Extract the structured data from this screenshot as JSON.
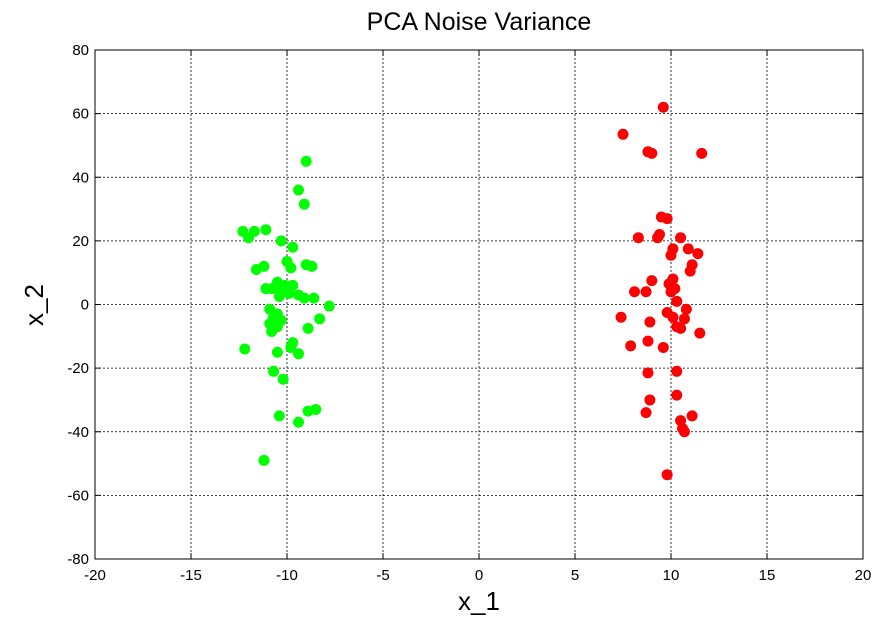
{
  "chart_data": {
    "type": "scatter",
    "title": "PCA Noise Variance",
    "xlabel": "x_1",
    "ylabel": "x_2",
    "xlim": [
      -20,
      20
    ],
    "ylim": [
      -80,
      80
    ],
    "xticks": [
      -20,
      -15,
      -10,
      -5,
      0,
      5,
      10,
      15,
      20
    ],
    "yticks": [
      -80,
      -60,
      -40,
      -20,
      0,
      20,
      40,
      60,
      80
    ],
    "grid": true,
    "series": [
      {
        "color": "#00ff00",
        "points": [
          [
            -9.0,
            45
          ],
          [
            -9.4,
            36
          ],
          [
            -9.1,
            31.5
          ],
          [
            -12.3,
            23
          ],
          [
            -11.7,
            23
          ],
          [
            -11.1,
            23.5
          ],
          [
            -12.0,
            21
          ],
          [
            -10.3,
            20
          ],
          [
            -9.7,
            18
          ],
          [
            -10.0,
            13.5
          ],
          [
            -9.0,
            12.5
          ],
          [
            -8.7,
            12
          ],
          [
            -11.2,
            12
          ],
          [
            -11.6,
            11
          ],
          [
            -9.8,
            11.5
          ],
          [
            -10.5,
            7
          ],
          [
            -10.1,
            6
          ],
          [
            -9.7,
            6
          ],
          [
            -11.1,
            5
          ],
          [
            -10.8,
            5
          ],
          [
            -10.3,
            4
          ],
          [
            -9.9,
            3.5
          ],
          [
            -10.4,
            2.5
          ],
          [
            -9.4,
            3
          ],
          [
            -9.1,
            2
          ],
          [
            -8.6,
            2
          ],
          [
            -7.8,
            -0.5
          ],
          [
            -10.9,
            -1.5
          ],
          [
            -10.5,
            -3
          ],
          [
            -10.7,
            -4
          ],
          [
            -10.3,
            -5
          ],
          [
            -8.3,
            -4.5
          ],
          [
            -10.9,
            -6
          ],
          [
            -10.5,
            -7
          ],
          [
            -10.8,
            -8.5
          ],
          [
            -8.9,
            -7.5
          ],
          [
            -9.7,
            -12
          ],
          [
            -9.8,
            -13.5
          ],
          [
            -10.5,
            -15
          ],
          [
            -9.4,
            -15.5
          ],
          [
            -12.2,
            -14
          ],
          [
            -10.7,
            -21
          ],
          [
            -10.2,
            -23.5
          ],
          [
            -8.9,
            -33.5
          ],
          [
            -8.5,
            -33
          ],
          [
            -10.4,
            -35
          ],
          [
            -9.4,
            -37
          ],
          [
            -11.2,
            -49
          ]
        ]
      },
      {
        "color": "#ff0000",
        "points": [
          [
            9.6,
            62
          ],
          [
            7.5,
            53.5
          ],
          [
            8.8,
            48
          ],
          [
            9.0,
            47.5
          ],
          [
            11.6,
            47.5
          ],
          [
            9.5,
            27.5
          ],
          [
            9.8,
            27
          ],
          [
            9.4,
            22
          ],
          [
            9.3,
            21
          ],
          [
            8.3,
            21
          ],
          [
            10.5,
            21
          ],
          [
            10.1,
            17.5
          ],
          [
            10.9,
            17.5
          ],
          [
            11.4,
            16
          ],
          [
            10.0,
            15.5
          ],
          [
            11.1,
            12.5
          ],
          [
            11.0,
            10.5
          ],
          [
            10.1,
            8
          ],
          [
            9.0,
            7.5
          ],
          [
            9.9,
            6.5
          ],
          [
            10.2,
            5
          ],
          [
            10.0,
            4
          ],
          [
            8.1,
            4
          ],
          [
            8.7,
            4
          ],
          [
            10.3,
            1
          ],
          [
            10.8,
            -1.5
          ],
          [
            9.8,
            -2.5
          ],
          [
            10.1,
            -4
          ],
          [
            10.7,
            -4.5
          ],
          [
            7.4,
            -4
          ],
          [
            8.9,
            -5.5
          ],
          [
            10.3,
            -7
          ],
          [
            10.5,
            -7.5
          ],
          [
            11.5,
            -9
          ],
          [
            8.8,
            -11.5
          ],
          [
            9.6,
            -13.5
          ],
          [
            7.9,
            -13
          ],
          [
            8.8,
            -21.5
          ],
          [
            10.3,
            -21
          ],
          [
            10.3,
            -28.5
          ],
          [
            8.9,
            -30
          ],
          [
            8.7,
            -34
          ],
          [
            11.1,
            -35
          ],
          [
            10.5,
            -36.5
          ],
          [
            10.6,
            -39
          ],
          [
            10.7,
            -40
          ],
          [
            9.8,
            -53.5
          ]
        ]
      }
    ]
  }
}
